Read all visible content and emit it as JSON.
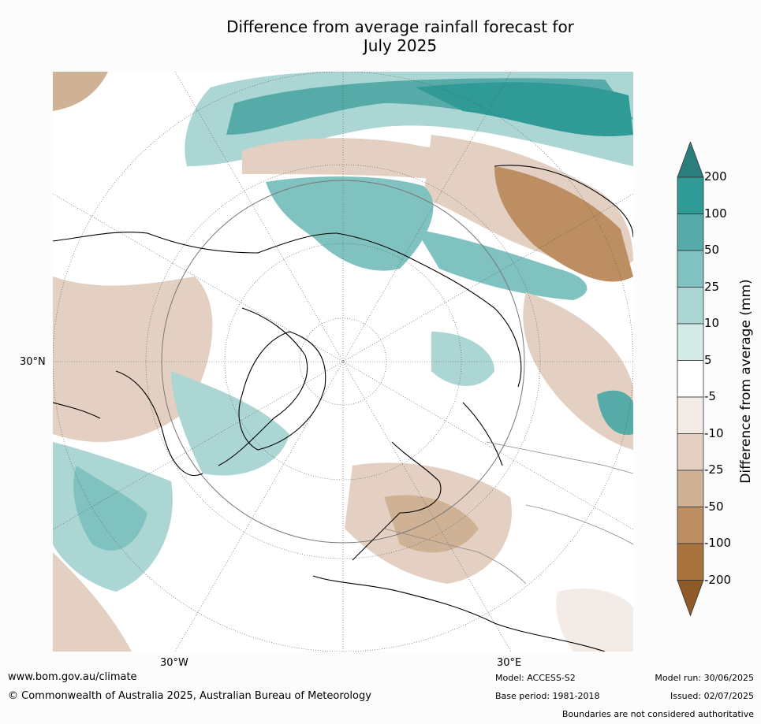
{
  "title_line1": "Difference from average rainfall forecast for",
  "title_line2": "July 2025",
  "map": {
    "lat_label": "30°N",
    "lon_label_left": "30°W",
    "lon_label_right": "30°E"
  },
  "colorbar": {
    "label": "Difference from average (mm)",
    "ticks": [
      "200",
      "100",
      "50",
      "25",
      "10",
      "5",
      "-5",
      "-10",
      "-25",
      "-50",
      "-100",
      "-200"
    ],
    "colors": [
      "#2a7f7c",
      "#2f9a96",
      "#56aaa8",
      "#80c2bf",
      "#abd6d3",
      "#d5ebe8",
      "#ffffff",
      "#f3ebe6",
      "#e3d0c2",
      "#cfb296",
      "#bc8e62",
      "#a9733d",
      "#8e5a28"
    ]
  },
  "footer": {
    "url": "www.bom.gov.au/climate",
    "copyright": "© Commonwealth of Australia 2025, Australian Bureau of Meteorology",
    "model": "Model: ACCESS-S2",
    "base_period": "Base period: 1981-2018",
    "model_run": "Model run: 30/06/2025",
    "issued": "Issued: 02/07/2025",
    "disclaimer": "Boundaries are not considered authoritative"
  }
}
